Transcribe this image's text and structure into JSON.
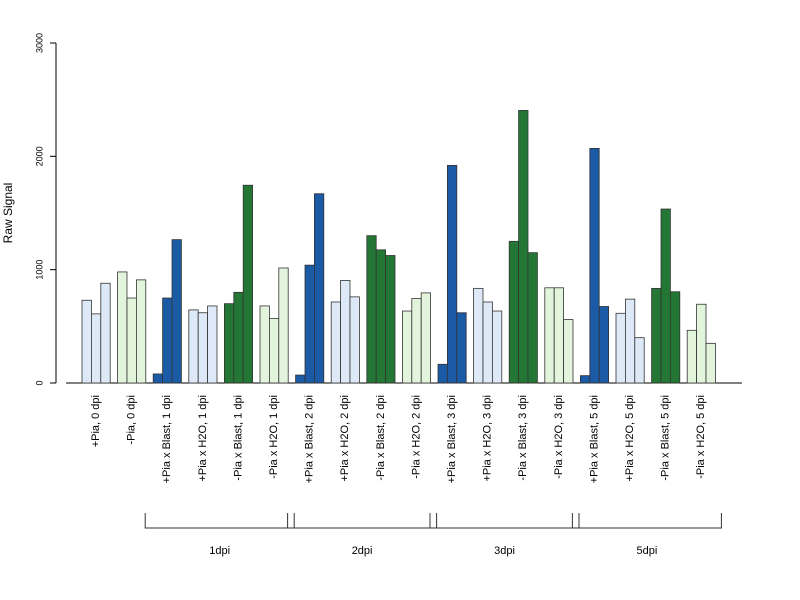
{
  "chart_data": {
    "type": "bar",
    "ylabel": "Raw Signal",
    "ylim": [
      0,
      3000
    ],
    "yticks": [
      0,
      1000,
      2000,
      3000
    ],
    "categories": [
      "+Pia, 0 dpi",
      "-Pia, 0 dpi",
      "+Pia x Blast, 1 dpi",
      "+Pia x H2O, 1 dpi",
      "-Pia x Blast, 1 dpi",
      "-Pia x H2O, 1 dpi",
      "+Pia x Blast, 2 dpi",
      "+Pia x H2O, 2 dpi",
      "-Pia x Blast, 2 dpi",
      "-Pia x H2O, 2 dpi",
      "+Pia x Blast, 3 dpi",
      "+Pia x H2O, 3 dpi",
      "-Pia x Blast, 3 dpi",
      "-Pia x H2O, 3 dpi",
      "+Pia x Blast, 5 dpi",
      "+Pia x H2O, 5 dpi",
      "-Pia x Blast, 5 dpi",
      "-Pia x H2O, 5 dpi"
    ],
    "values": [
      [
        730,
        610,
        880
      ],
      [
        980,
        750,
        910
      ],
      [
        80,
        750,
        1265
      ],
      [
        645,
        620,
        680
      ],
      [
        700,
        800,
        1745
      ],
      [
        680,
        570,
        1015
      ],
      [
        70,
        1040,
        1670
      ],
      [
        715,
        905,
        760
      ],
      [
        1300,
        1175,
        1125
      ],
      [
        635,
        745,
        795
      ],
      [
        165,
        1920,
        620
      ],
      [
        835,
        715,
        635
      ],
      [
        1250,
        2405,
        1150
      ],
      [
        840,
        840,
        560
      ],
      [
        65,
        2070,
        675
      ],
      [
        615,
        740,
        400
      ],
      [
        835,
        1535,
        805
      ],
      [
        465,
        695,
        350
      ]
    ],
    "group_colors": [
      "#dde9f7",
      "#e2f5dc",
      "#1b5aa5",
      "#dde9f7",
      "#237634",
      "#e2f5dc",
      "#1b5aa5",
      "#dde9f7",
      "#237634",
      "#e2f5dc",
      "#1b5aa5",
      "#dde9f7",
      "#237634",
      "#e2f5dc",
      "#1b5aa5",
      "#dde9f7",
      "#237634",
      "#e2f5dc"
    ],
    "brackets": [
      {
        "label": "1dpi",
        "from": 2,
        "to": 5
      },
      {
        "label": "2dpi",
        "from": 6,
        "to": 9
      },
      {
        "label": "3dpi",
        "from": 10,
        "to": 13
      },
      {
        "label": "5dpi",
        "from": 14,
        "to": 17
      }
    ]
  }
}
